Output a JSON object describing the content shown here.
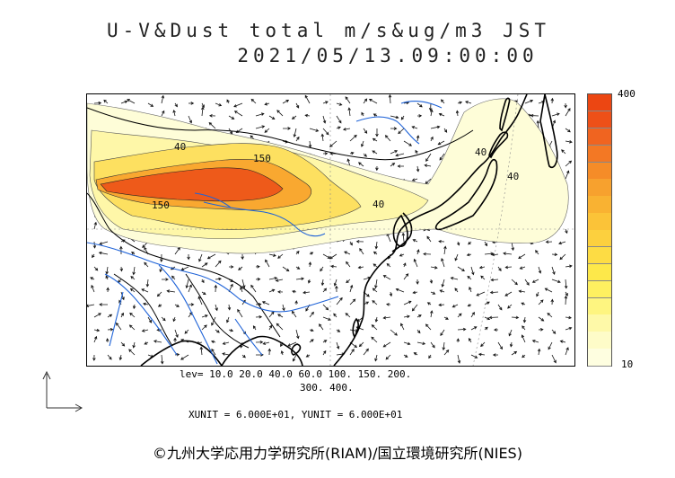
{
  "header": {
    "title": "U-V&Dust total m/s&ug/m3 JST",
    "datetime": "2021/05/13.09:00:00"
  },
  "colorbar": {
    "max_label": "400",
    "min_label": "10",
    "colors": [
      "#fefee0",
      "#fefcc8",
      "#fef9a8",
      "#fef580",
      "#fef060",
      "#fde84a",
      "#fddc44",
      "#fcd03e",
      "#fbc338",
      "#f9b232",
      "#f7a12e",
      "#f58c28",
      "#f37824",
      "#f06420",
      "#ee5018",
      "#ec4612"
    ]
  },
  "contour_labels": [
    "40",
    "150",
    "150",
    "40",
    "40",
    "40"
  ],
  "levels": {
    "line1": "lev= 10.0 20.0 40.0 60.0 100. 150. 200.",
    "line2": "300. 400."
  },
  "units": {
    "text": "XUNIT = 6.000E+01, YUNIT = 6.000E+01"
  },
  "footer": {
    "copyright": "©九州大学応用力学研究所(RIAM)/国立環境研究所(NIES)"
  },
  "icons": {
    "axes": "axes-arrow-icon"
  }
}
